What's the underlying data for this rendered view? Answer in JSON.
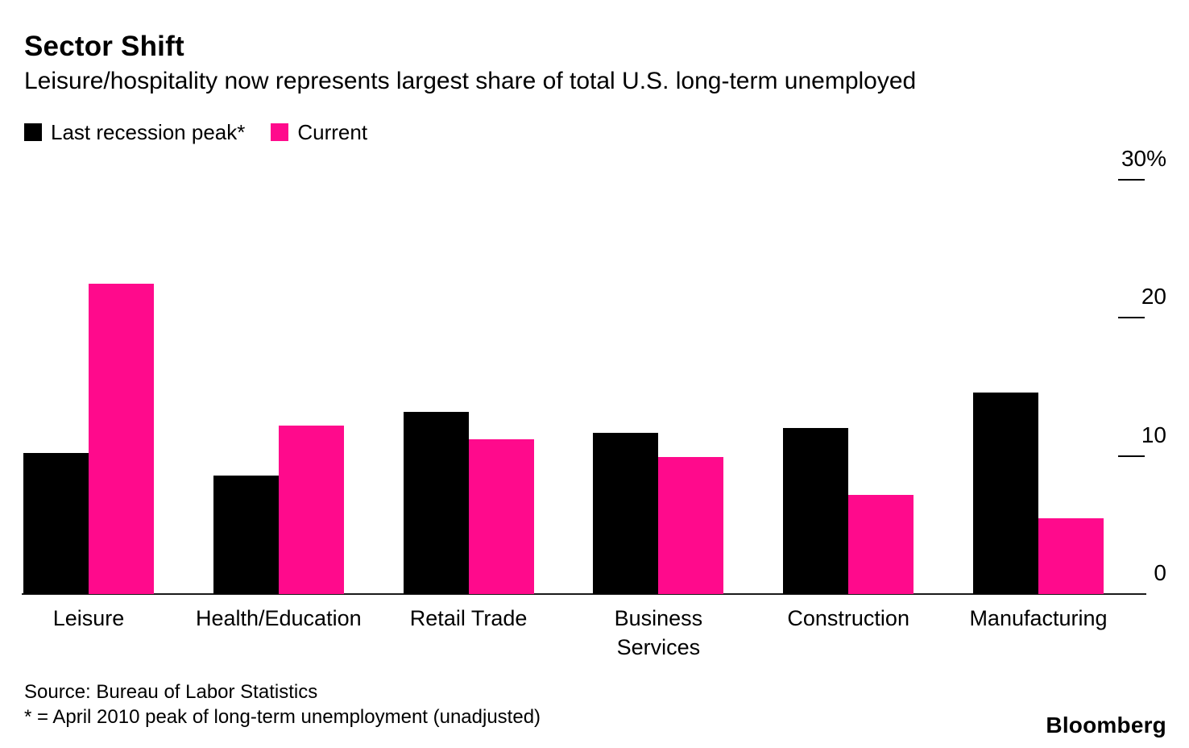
{
  "header": {
    "title": "Sector Shift",
    "subtitle": "Leisure/hospitality now represents largest share of total U.S. long-term unemployed"
  },
  "legend": {
    "items": [
      {
        "label": "Last recession peak*",
        "color": "#000000"
      },
      {
        "label": "Current",
        "color": "#FF0A8C"
      }
    ]
  },
  "chart_data": {
    "type": "bar",
    "title": "Sector Shift",
    "subtitle": "Leisure/hospitality now represents largest share of total U.S. long-term unemployed",
    "categories": [
      "Leisure",
      "Health/Education",
      "Retail Trade",
      "Business\nServices",
      "Construction",
      "Manufacturing"
    ],
    "series": [
      {
        "name": "Last recession peak*",
        "color": "#000000",
        "values": [
          10.2,
          8.6,
          13.2,
          11.7,
          12.0,
          14.6
        ]
      },
      {
        "name": "Current",
        "color": "#FF0A8C",
        "values": [
          22.5,
          12.2,
          11.2,
          9.9,
          7.2,
          5.5
        ]
      }
    ],
    "xlabel": "",
    "ylabel": "",
    "ylim": [
      0,
      30
    ],
    "yticks": [
      {
        "value": 30,
        "label": "30%",
        "tick": true
      },
      {
        "value": 20,
        "label": "20",
        "tick": true
      },
      {
        "value": 10,
        "label": "10",
        "tick": true
      },
      {
        "value": 0,
        "label": "0",
        "tick": false
      }
    ],
    "grid": false,
    "legend_position": "top-left",
    "y_axis_side": "right",
    "unit": "%"
  },
  "footer": {
    "source": "Source: Bureau of Labor Statistics",
    "footnote": "* = April 2010 peak of long-term unemployment (unadjusted)",
    "brand": "Bloomberg"
  }
}
